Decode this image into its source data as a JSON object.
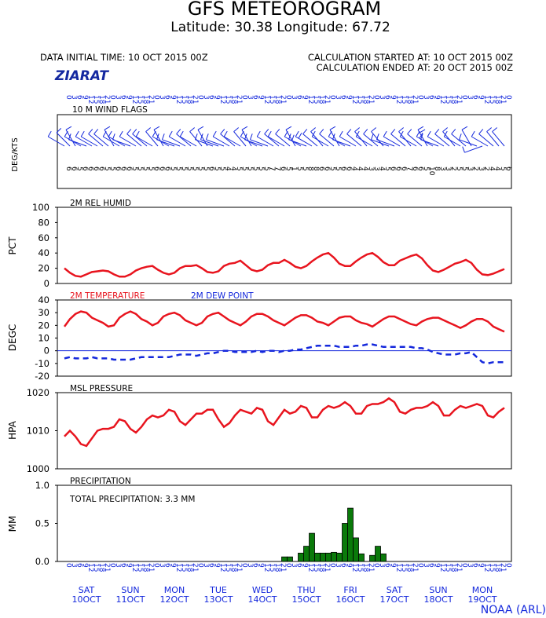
{
  "header": {
    "title": "GFS METEOROGRAM",
    "subtitle": "Latitude: 30.38 Longitude:  67.72",
    "initial_time": "DATA INITIAL TIME: 10 OCT 2015 00Z",
    "calc_started": "CALCULATION STARTED AT: 10 OCT 2015 00Z",
    "calc_ended": "CALCULATION ENDED AT: 20 OCT 2015 00Z",
    "location": "ZIARAT",
    "credit": "NOAA (ARL)"
  },
  "colors": {
    "temperature": "#e8141e",
    "dewpoint": "#1428dc",
    "precip": "#0a7a0a",
    "wind": "#1428dc",
    "axis_text": "#1428dc"
  },
  "x_axis": {
    "hours": [
      "0",
      "3",
      "6",
      "9",
      "12",
      "15",
      "18",
      "21",
      "0",
      "3",
      "6",
      "9",
      "12",
      "15",
      "18",
      "21",
      "0",
      "3",
      "6",
      "9",
      "12",
      "15",
      "18",
      "21",
      "0",
      "3",
      "6",
      "9",
      "12",
      "15",
      "18",
      "21",
      "0",
      "3",
      "6",
      "9",
      "12",
      "15",
      "18",
      "21",
      "0",
      "3",
      "6",
      "9",
      "12",
      "15",
      "18",
      "21",
      "0",
      "3",
      "6",
      "9",
      "12",
      "15",
      "18",
      "21",
      "0",
      "3",
      "6",
      "9",
      "12",
      "15",
      "18",
      "21",
      "0",
      "3",
      "6",
      "9",
      "12",
      "15",
      "18",
      "21",
      "0",
      "3",
      "6",
      "9",
      "12",
      "15",
      "18",
      "21",
      "0"
    ],
    "days": [
      {
        "dow": "SAT",
        "date": "10OCT"
      },
      {
        "dow": "SUN",
        "date": "11OCT"
      },
      {
        "dow": "MON",
        "date": "12OCT"
      },
      {
        "dow": "TUE",
        "date": "13OCT"
      },
      {
        "dow": "WED",
        "date": "14OCT"
      },
      {
        "dow": "THU",
        "date": "15OCT"
      },
      {
        "dow": "FRI",
        "date": "16OCT"
      },
      {
        "dow": "SAT",
        "date": "17OCT"
      },
      {
        "dow": "SUN",
        "date": "18OCT"
      },
      {
        "dow": "MON",
        "date": "19OCT"
      }
    ]
  },
  "chart_data": [
    {
      "type": "wind_barbs",
      "title": "10 M  WIND FLAGS",
      "ylabel": "DEG/KTS",
      "direction_deg": [
        300,
        315,
        330,
        300,
        290,
        300,
        300,
        310,
        310,
        330,
        300,
        300,
        290,
        300,
        310,
        310,
        300,
        320,
        330,
        300,
        290,
        290,
        300,
        310,
        300,
        320,
        330,
        290,
        290,
        290,
        300,
        310,
        300,
        320,
        330,
        300,
        290,
        290,
        300,
        310,
        300,
        310,
        330,
        300,
        290,
        300,
        310,
        320,
        300,
        310,
        330,
        300,
        290,
        300,
        310,
        320,
        300,
        310,
        320,
        290,
        290,
        300,
        310,
        320,
        300,
        310,
        330,
        300,
        290,
        300,
        310,
        320,
        300,
        310,
        330,
        290,
        250,
        300,
        310,
        320,
        320
      ],
      "speed_labels": [
        "6",
        "6",
        "5",
        "6",
        "6",
        "6",
        "6",
        "5",
        "5",
        "6",
        "6",
        "6",
        "5",
        "5",
        "5",
        "5",
        "6",
        "6",
        "6",
        "5",
        "5",
        "5",
        "5",
        "5",
        "5",
        "5",
        "6",
        "5",
        "5",
        "4",
        "4",
        "5",
        "5",
        "5",
        "5",
        "5",
        "5",
        "7",
        "7",
        "6",
        "5",
        "1",
        "5",
        "5",
        "8",
        "8",
        "6",
        "6",
        "5",
        "5",
        "6",
        "6",
        "4",
        "4",
        "4",
        "3",
        "3",
        "4",
        "5",
        "6",
        "6",
        "6",
        "7",
        "6",
        "6",
        "5",
        "10",
        "8",
        "3",
        "3",
        "2",
        "5",
        "5",
        "3",
        "2",
        "3",
        "2",
        "4",
        "4",
        "5",
        "6"
      ]
    },
    {
      "type": "line",
      "title": "2M REL HUMID",
      "ylabel": "PCT",
      "ylim": [
        0,
        100
      ],
      "yticks": [
        0,
        20,
        40,
        60,
        80,
        100
      ],
      "series": [
        {
          "values": [
            20,
            14,
            10,
            9,
            12,
            15,
            16,
            17,
            16,
            12,
            9,
            9,
            12,
            17,
            20,
            22,
            23,
            18,
            14,
            12,
            14,
            20,
            23,
            23,
            24,
            20,
            15,
            14,
            16,
            23,
            26,
            27,
            30,
            24,
            18,
            16,
            18,
            24,
            27,
            27,
            31,
            27,
            22,
            20,
            23,
            29,
            34,
            38,
            40,
            34,
            26,
            23,
            23,
            29,
            34,
            38,
            40,
            35,
            28,
            24,
            24,
            30,
            33,
            36,
            38,
            33,
            24,
            17,
            15,
            18,
            22,
            26,
            28,
            31,
            27,
            18,
            12,
            11,
            13,
            16,
            19
          ]
        }
      ]
    },
    {
      "type": "line",
      "ylabel": "DEGC",
      "ylim": [
        -20,
        40
      ],
      "yticks": [
        -20,
        -10,
        0,
        10,
        20,
        30,
        40
      ],
      "series": [
        {
          "name": "2M TEMPERATURE",
          "values": [
            19,
            25,
            29,
            31,
            30,
            26,
            24,
            22,
            19,
            20,
            26,
            29,
            31,
            29,
            25,
            23,
            20,
            22,
            27,
            29,
            30,
            28,
            24,
            22,
            20,
            22,
            27,
            29,
            30,
            27,
            24,
            22,
            20,
            23,
            27,
            29,
            29,
            27,
            24,
            22,
            20,
            23,
            26,
            28,
            28,
            26,
            23,
            22,
            20,
            23,
            26,
            27,
            27,
            24,
            22,
            21,
            19,
            22,
            25,
            27,
            27,
            25,
            23,
            21,
            20,
            23,
            25,
            26,
            26,
            24,
            22,
            20,
            18,
            20,
            23,
            25,
            25,
            23,
            19,
            17,
            15
          ]
        },
        {
          "name": "2M  DEW POINT",
          "values": [
            -6,
            -5,
            -6,
            -6,
            -6,
            -5,
            -6,
            -6,
            -6,
            -7,
            -7,
            -7,
            -7,
            -6,
            -5,
            -5,
            -5,
            -5,
            -5,
            -5,
            -4,
            -3,
            -3,
            -3,
            -4,
            -3,
            -2,
            -2,
            -1,
            0,
            0,
            -1,
            -1,
            -1,
            -1,
            0,
            -1,
            0,
            0,
            -1,
            0,
            0,
            1,
            1,
            2,
            3,
            4,
            4,
            4,
            4,
            3,
            3,
            3,
            4,
            4,
            5,
            5,
            4,
            3,
            3,
            3,
            3,
            3,
            3,
            2,
            2,
            1,
            -1,
            -2,
            -3,
            -3,
            -3,
            -2,
            -2,
            -1,
            -5,
            -9,
            -10,
            -9,
            -9,
            -9
          ]
        }
      ]
    },
    {
      "type": "line",
      "title": "MSL PRESSURE",
      "ylabel": "HPA",
      "ylim": [
        1000,
        1020
      ],
      "yticks": [
        1000,
        1010,
        1020
      ],
      "series": [
        {
          "values": [
            1008.5,
            1010,
            1008.5,
            1006.5,
            1006,
            1008,
            1010,
            1010.5,
            1010.5,
            1011,
            1013,
            1012.5,
            1010.5,
            1009.5,
            1011,
            1013,
            1014,
            1013.5,
            1014,
            1015.5,
            1015,
            1012.5,
            1011.5,
            1013,
            1014.5,
            1014.5,
            1015.5,
            1015.5,
            1013,
            1011,
            1012,
            1014,
            1015.5,
            1015,
            1014.5,
            1016,
            1015.5,
            1012.5,
            1011.5,
            1013.5,
            1015.5,
            1014.5,
            1015,
            1016.5,
            1016,
            1013.5,
            1013.5,
            1015.5,
            1016.5,
            1016,
            1016.5,
            1017.5,
            1016.5,
            1014.5,
            1014.5,
            1016.5,
            1017,
            1017,
            1017.5,
            1018.5,
            1017.5,
            1015,
            1014.5,
            1015.5,
            1016,
            1016,
            1016.5,
            1017.5,
            1016.5,
            1014,
            1014,
            1015.5,
            1016.5,
            1016,
            1016.5,
            1017,
            1016.5,
            1014,
            1013.5,
            1015,
            1016
          ]
        }
      ]
    },
    {
      "type": "bar",
      "title": "PRECIPITATION",
      "ylabel": "MM",
      "annotation": "TOTAL PRECIPITATION:   3.3 MM",
      "ylim": [
        0,
        1
      ],
      "yticks": [
        "0.0",
        "0.5",
        "1.0"
      ],
      "values": [
        0,
        0,
        0,
        0,
        0,
        0,
        0,
        0,
        0,
        0,
        0,
        0,
        0,
        0,
        0,
        0,
        0,
        0,
        0,
        0,
        0,
        0,
        0,
        0,
        0,
        0,
        0,
        0,
        0,
        0,
        0,
        0,
        0,
        0,
        0,
        0,
        0,
        0,
        0,
        0,
        0.06,
        0.06,
        0,
        0.11,
        0.2,
        0.37,
        0.11,
        0.11,
        0.11,
        0.12,
        0.11,
        0.5,
        0.7,
        0.31,
        0.1,
        0,
        0.08,
        0.2,
        0.1,
        0,
        0,
        0,
        0,
        0,
        0,
        0,
        0,
        0,
        0,
        0,
        0,
        0,
        0,
        0,
        0,
        0,
        0,
        0,
        0,
        0
      ]
    }
  ]
}
